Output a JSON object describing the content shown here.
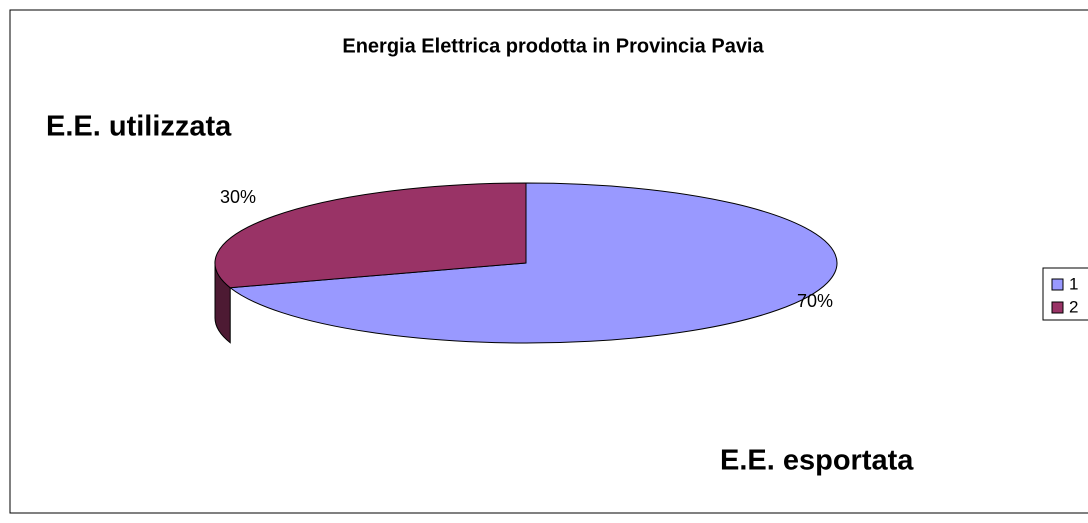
{
  "chart_data": {
    "type": "pie",
    "title": "Energia Elettrica prodotta in Provincia Pavia",
    "categories": [
      "1",
      "2"
    ],
    "values": [
      70,
      30
    ],
    "value_labels": [
      "70%",
      "30%"
    ],
    "colors": [
      "#9999ff",
      "#993366"
    ],
    "side_colors": [
      "#4b4b7f",
      "#4d1a33"
    ],
    "annotations": [
      "E.E. utilizzata",
      "E.E. esportata"
    ],
    "legend": "right"
  }
}
